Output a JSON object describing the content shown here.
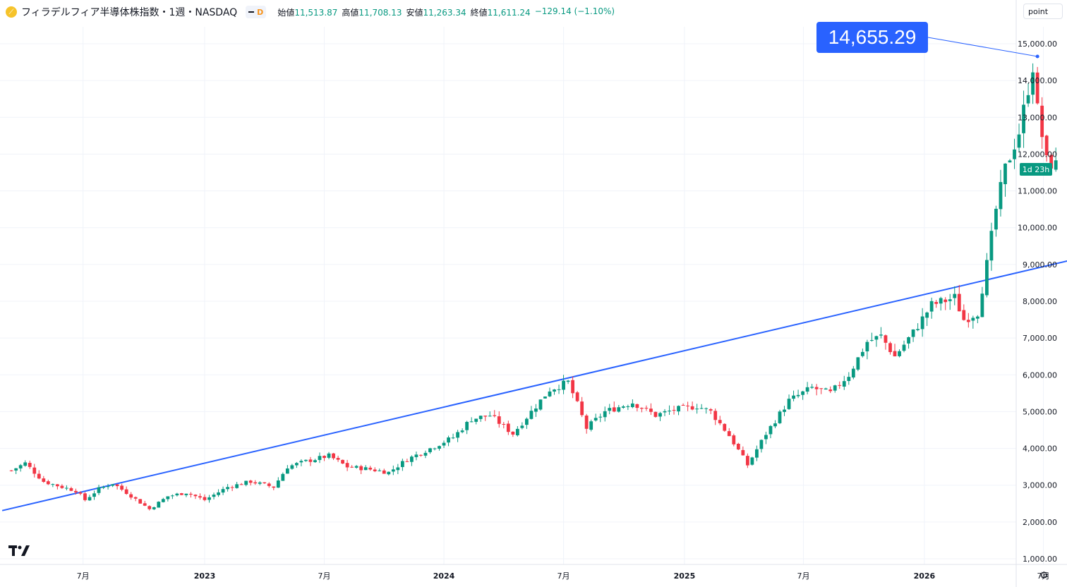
{
  "header": {
    "title": "フィラデルフィア半導体株指数・1週・NASDAQ",
    "source_badge": "D",
    "ohlc": [
      {
        "label": "始値",
        "value": "11,513.87"
      },
      {
        "label": "高値",
        "value": "11,708.13"
      },
      {
        "label": "安値",
        "value": "11,263.34"
      },
      {
        "label": "終値",
        "value": "11,611.24"
      }
    ],
    "change": "−129.14 (−1.10%)"
  },
  "scale_button": "point",
  "peak_label": "14,655.29",
  "countdown": "1d 23h",
  "colors": {
    "up": "#089981",
    "down": "#f23645",
    "trendline": "#2962ff",
    "grid": "#f0f3fa"
  },
  "icons": [
    "tradingview-logo-icon",
    "settings-gear-icon"
  ],
  "chart_data": {
    "type": "candlestick",
    "interval": "1 week",
    "y_scale": "linear",
    "ylim": [
      800,
      15800
    ],
    "y_ticks": [
      "1,000.00",
      "2,000.00",
      "3,000.00",
      "4,000.00",
      "5,000.00",
      "6,000.00",
      "7,000.00",
      "8,000.00",
      "9,000.00",
      "10,000.00",
      "11,000.00",
      "12,000.00",
      "13,000.00",
      "14,000.00",
      "15,000.00"
    ],
    "x_ticks": [
      "7月",
      "2023",
      "7月",
      "2024",
      "7月",
      "2025",
      "7月",
      "2026",
      "7月"
    ],
    "x_ticks_bold": [
      false,
      true,
      false,
      true,
      false,
      true,
      false,
      true,
      false
    ],
    "close_path": [
      [
        "2022-03-14",
        3400
      ],
      [
        "2022-04-04",
        3600
      ],
      [
        "2022-05-02",
        3100
      ],
      [
        "2022-05-30",
        2950
      ],
      [
        "2022-06-20",
        2850
      ],
      [
        "2022-07-04",
        2600
      ],
      [
        "2022-07-25",
        2900
      ],
      [
        "2022-08-15",
        3050
      ],
      [
        "2022-09-05",
        2800
      ],
      [
        "2022-10-10",
        2350
      ],
      [
        "2022-11-07",
        2700
      ],
      [
        "2022-12-05",
        2800
      ],
      [
        "2023-01-02",
        2600
      ],
      [
        "2023-02-06",
        2950
      ],
      [
        "2023-03-13",
        3100
      ],
      [
        "2023-04-17",
        2950
      ],
      [
        "2023-05-08",
        3500
      ],
      [
        "2023-06-05",
        3650
      ],
      [
        "2023-07-10",
        3800
      ],
      [
        "2023-08-07",
        3500
      ],
      [
        "2023-09-04",
        3450
      ],
      [
        "2023-10-09",
        3350
      ],
      [
        "2023-11-06",
        3700
      ],
      [
        "2023-12-11",
        4000
      ],
      [
        "2024-01-15",
        4300
      ],
      [
        "2024-02-12",
        4800
      ],
      [
        "2024-03-11",
        4900
      ],
      [
        "2024-04-15",
        4400
      ],
      [
        "2024-05-13",
        5000
      ],
      [
        "2024-06-10",
        5600
      ],
      [
        "2024-07-08",
        5800
      ],
      [
        "2024-07-22",
        5200
      ],
      [
        "2024-08-05",
        4550
      ],
      [
        "2024-09-02",
        5000
      ],
      [
        "2024-10-14",
        5250
      ],
      [
        "2024-11-18",
        4900
      ],
      [
        "2024-12-16",
        5050
      ],
      [
        "2025-01-20",
        5150
      ],
      [
        "2025-02-10",
        5000
      ],
      [
        "2025-03-10",
        4350
      ],
      [
        "2025-04-07",
        3550
      ],
      [
        "2025-05-05",
        4400
      ],
      [
        "2025-06-09",
        5300
      ],
      [
        "2025-07-14",
        5650
      ],
      [
        "2025-08-11",
        5500
      ],
      [
        "2025-09-08",
        6000
      ],
      [
        "2025-10-06",
        6900
      ],
      [
        "2025-10-27",
        7050
      ],
      [
        "2025-11-17",
        6500
      ],
      [
        "2025-12-15",
        7150
      ],
      [
        "2026-01-12",
        7900
      ],
      [
        "2026-02-16",
        8100
      ],
      [
        "2026-03-02",
        7500
      ],
      [
        "2026-03-23",
        7700
      ],
      [
        "2026-04-06",
        9000
      ],
      [
        "2026-04-20",
        10500
      ],
      [
        "2026-05-04",
        11600
      ],
      [
        "2026-05-25",
        12600
      ],
      [
        "2026-06-15",
        14400
      ],
      [
        "2026-06-22",
        13200
      ],
      [
        "2026-07-06",
        11800
      ],
      [
        "2026-07-20",
        11700
      ]
    ],
    "annotations": {
      "peak": {
        "date": "2026-06-22",
        "value": 14655.29
      },
      "trendline": {
        "start": [
          "2022-02-28",
          2310
        ],
        "end": [
          "2026-08-10",
          9110
        ]
      }
    }
  }
}
